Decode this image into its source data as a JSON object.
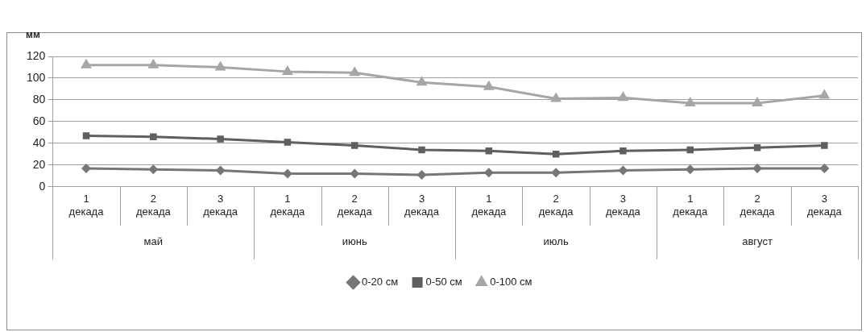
{
  "chart_data": {
    "type": "line",
    "ylabel": "мм",
    "categories": [
      "1 декада",
      "2 декада",
      "3 декада",
      "1 декада",
      "2 декада",
      "3 декада",
      "1 декада",
      "2 декада",
      "3 декада",
      "1 декада",
      "2 декада",
      "3 декада"
    ],
    "annotations": [
      "май",
      "июнь",
      "июль",
      "август"
    ],
    "series": [
      {
        "name": "0-20 см",
        "color": "#767676",
        "marker": "diamond",
        "values": [
          17,
          16,
          15,
          12,
          12,
          11,
          13,
          13,
          15,
          16,
          17,
          17
        ]
      },
      {
        "name": "0-50 см",
        "color": "#5f5f5f",
        "marker": "square",
        "values": [
          47,
          46,
          44,
          41,
          38,
          34,
          33,
          30,
          33,
          34,
          36,
          38
        ]
      },
      {
        "name": "0-100 см",
        "color": "#a6a6a6",
        "marker": "triangle",
        "values": [
          112,
          112,
          110,
          106,
          105,
          96,
          92,
          81,
          82,
          77,
          77,
          84
        ]
      }
    ],
    "ylim": [
      0,
      120
    ],
    "yticks": [
      0,
      20,
      40,
      60,
      80,
      100,
      120
    ],
    "grid": "y",
    "legend": "bottom",
    "line_style": "solid"
  }
}
